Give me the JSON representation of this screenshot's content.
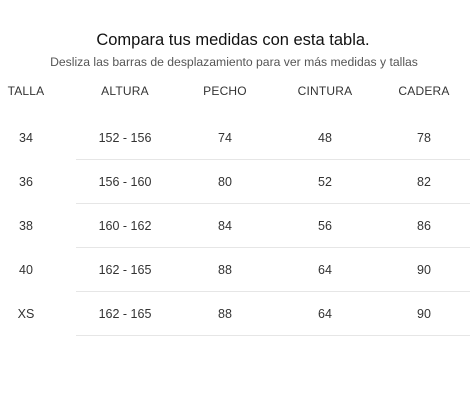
{
  "title": "Compara tus medidas con esta tabla.",
  "subtitle": "Desliza las barras de desplazamiento para ver más medidas y tallas",
  "table": {
    "headers": [
      "TALLA",
      "ALTURA",
      "PECHO",
      "CINTURA",
      "CADERA"
    ],
    "rows": [
      [
        "34",
        "152 - 156",
        "74",
        "48",
        "78"
      ],
      [
        "36",
        "156 - 160",
        "80",
        "52",
        "82"
      ],
      [
        "38",
        "160 - 162",
        "84",
        "56",
        "86"
      ],
      [
        "40",
        "162 - 165",
        "88",
        "64",
        "90"
      ],
      [
        "XS",
        "162 - 165",
        "88",
        "64",
        "90"
      ]
    ]
  }
}
